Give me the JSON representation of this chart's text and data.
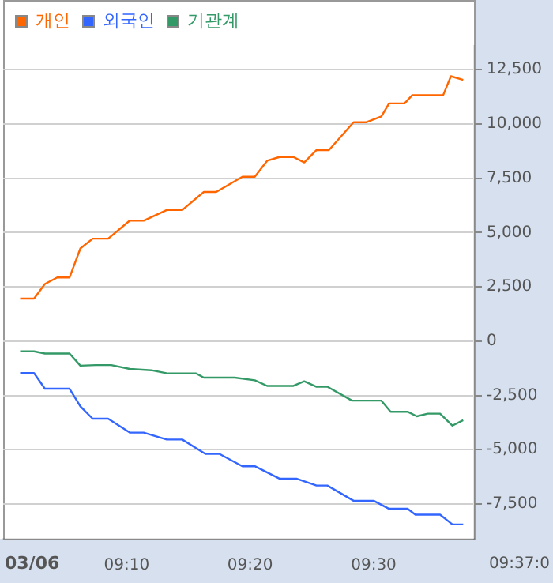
{
  "chart_data": {
    "type": "line",
    "legend": "top left",
    "grid": "y",
    "marker": "none",
    "line_style": "solid",
    "xlim": [
      9.0,
      9.6354
    ],
    "xticks": [
      {
        "value": 9.1667,
        "label": "09:10"
      },
      {
        "value": 9.3333,
        "label": "09:20"
      },
      {
        "value": 9.5,
        "label": "09:30"
      }
    ],
    "annotations": [
      "03/06",
      "09:37:0"
    ],
    "ylim": [
      -9100,
      13600
    ],
    "yticks": [
      {
        "value": -7500,
        "label": "-7,500"
      },
      {
        "value": -5000,
        "label": "-5,000"
      },
      {
        "value": -2500,
        "label": "-2,500"
      },
      {
        "value": 0,
        "label": "0"
      },
      {
        "value": 2500,
        "label": "2,500"
      },
      {
        "value": 5000,
        "label": "5,000"
      },
      {
        "value": 7500,
        "label": "7,500"
      },
      {
        "value": 10000,
        "label": "10,000"
      },
      {
        "value": 12500,
        "label": "12,500"
      }
    ],
    "series": [
      {
        "name": "개인",
        "color": "#ff6600",
        "x": [
          9.0229,
          9.0417,
          9.0563,
          9.0729,
          9.0896,
          9.1042,
          9.1208,
          9.1417,
          9.1708,
          9.1896,
          9.2208,
          9.2417,
          9.2708,
          9.2875,
          9.3229,
          9.3396,
          9.3563,
          9.3729,
          9.3917,
          9.4063,
          9.4229,
          9.4396,
          9.4729,
          9.4896,
          9.5104,
          9.5208,
          9.5417,
          9.5521,
          9.5938,
          9.6042,
          9.6208
        ],
        "values": [
          1960,
          1960,
          2630,
          2930,
          2930,
          4270,
          4720,
          4720,
          5550,
          5550,
          6040,
          6040,
          6870,
          6870,
          7570,
          7570,
          8310,
          8480,
          8480,
          8230,
          8800,
          8800,
          10080,
          10080,
          10350,
          10950,
          10950,
          11330,
          11330,
          12200,
          12030
        ]
      },
      {
        "name": "외국인",
        "color": "#3366ff",
        "x": [
          9.0229,
          9.0417,
          9.0563,
          9.0896,
          9.1042,
          9.1208,
          9.1417,
          9.1708,
          9.1896,
          9.2208,
          9.2417,
          9.2729,
          9.2917,
          9.3229,
          9.3396,
          9.3729,
          9.3958,
          9.4229,
          9.4375,
          9.4729,
          9.5,
          9.5208,
          9.5458,
          9.5563,
          9.5896,
          9.6063,
          9.6208
        ],
        "values": [
          -1470,
          -1470,
          -2190,
          -2190,
          -3000,
          -3570,
          -3570,
          -4210,
          -4210,
          -4530,
          -4530,
          -5190,
          -5190,
          -5760,
          -5760,
          -6330,
          -6330,
          -6650,
          -6650,
          -7350,
          -7350,
          -7720,
          -7720,
          -7990,
          -7990,
          -8440,
          -8440
        ]
      },
      {
        "name": "기관계",
        "color": "#339966",
        "x": [
          9.0229,
          9.0417,
          9.0563,
          9.0896,
          9.1042,
          9.125,
          9.1458,
          9.1708,
          9.2,
          9.2229,
          9.2604,
          9.2708,
          9.3125,
          9.3396,
          9.3563,
          9.3917,
          9.4063,
          9.4229,
          9.4375,
          9.4708,
          9.5104,
          9.5229,
          9.5458,
          9.5583,
          9.5729,
          9.5896,
          9.6063,
          9.6208
        ],
        "values": [
          -470,
          -470,
          -570,
          -570,
          -1130,
          -1100,
          -1100,
          -1280,
          -1340,
          -1490,
          -1490,
          -1680,
          -1680,
          -1800,
          -2060,
          -2060,
          -1850,
          -2100,
          -2100,
          -2740,
          -2740,
          -3250,
          -3250,
          -3460,
          -3340,
          -3340,
          -3890,
          -3640
        ]
      }
    ]
  }
}
